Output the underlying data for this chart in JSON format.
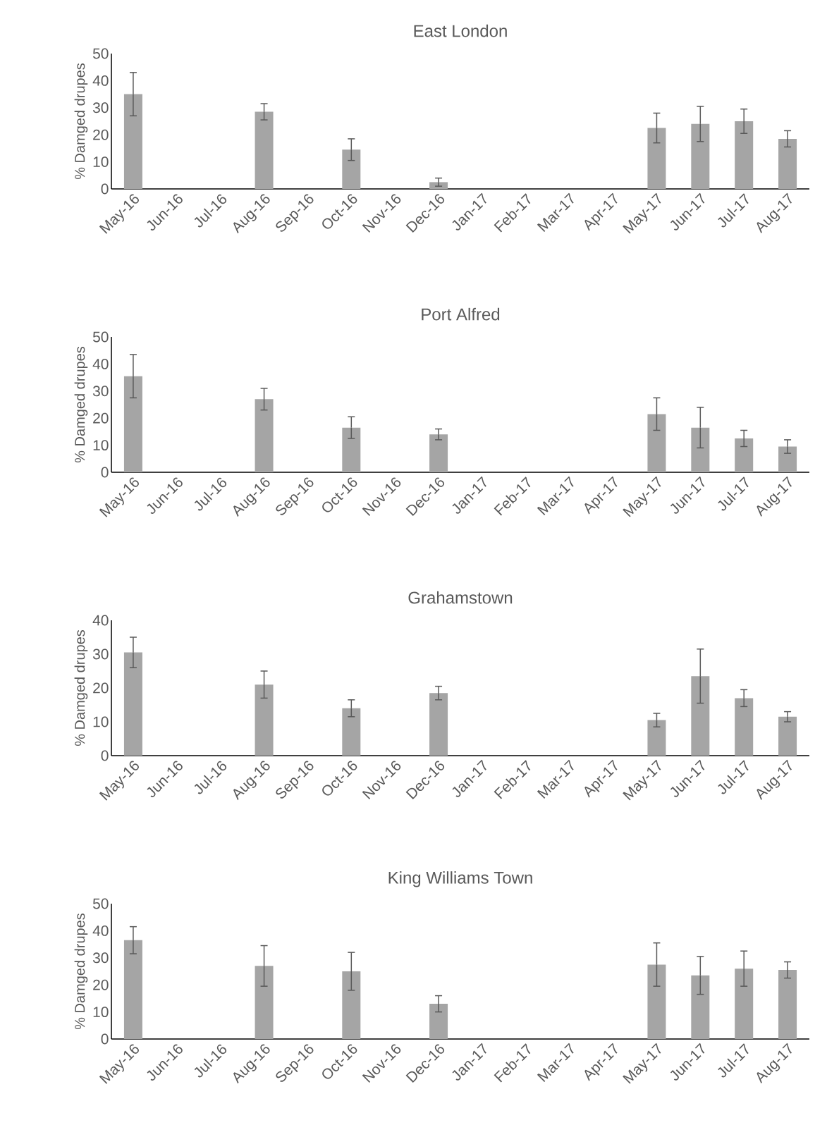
{
  "chart_data": [
    {
      "type": "bar",
      "title": "East London",
      "ylabel": "% Damged drupes",
      "color": "#a5a5a5",
      "grid": false,
      "categories": [
        "May-16",
        "Jun-16",
        "Jul-16",
        "Aug-16",
        "Sep-16",
        "Oct-16",
        "Nov-16",
        "Dec-16",
        "Jan-17",
        "Feb-17",
        "Mar-17",
        "Apr-17",
        "May-17",
        "Jun-17",
        "Jul-17",
        "Aug-17"
      ],
      "values": [
        35,
        null,
        null,
        28.5,
        null,
        14.5,
        null,
        2.5,
        null,
        null,
        null,
        null,
        22.5,
        24,
        25,
        18.5
      ],
      "errors": [
        8,
        null,
        null,
        3,
        null,
        4,
        null,
        1.5,
        null,
        null,
        null,
        null,
        5.5,
        6.5,
        4.5,
        3
      ],
      "ylim": [
        0,
        50
      ],
      "yticks": [
        0,
        10,
        20,
        30,
        40,
        50
      ]
    },
    {
      "type": "bar",
      "title": "Port Alfred",
      "ylabel": "% Damged drupes",
      "color": "#a5a5a5",
      "grid": false,
      "categories": [
        "May-16",
        "Jun-16",
        "Jul-16",
        "Aug-16",
        "Sep-16",
        "Oct-16",
        "Nov-16",
        "Dec-16",
        "Jan-17",
        "Feb-17",
        "Mar-17",
        "Apr-17",
        "May-17",
        "Jun-17",
        "Jul-17",
        "Aug-17"
      ],
      "values": [
        35.5,
        null,
        null,
        27,
        null,
        16.5,
        null,
        14,
        null,
        null,
        null,
        null,
        21.5,
        16.5,
        12.5,
        9.5
      ],
      "errors": [
        8,
        null,
        null,
        4,
        null,
        4,
        null,
        2,
        null,
        null,
        null,
        null,
        6,
        7.5,
        3,
        2.5
      ],
      "ylim": [
        0,
        50
      ],
      "yticks": [
        0,
        10,
        20,
        30,
        40,
        50
      ]
    },
    {
      "type": "bar",
      "title": "Grahamstown",
      "ylabel": "% Damged drupes",
      "color": "#a5a5a5",
      "grid": false,
      "categories": [
        "May-16",
        "Jun-16",
        "Jul-16",
        "Aug-16",
        "Sep-16",
        "Oct-16",
        "Nov-16",
        "Dec-16",
        "Jan-17",
        "Feb-17",
        "Mar-17",
        "Apr-17",
        "May-17",
        "Jun-17",
        "Jul-17",
        "Aug-17"
      ],
      "values": [
        30.5,
        null,
        null,
        21,
        null,
        14,
        null,
        18.5,
        null,
        null,
        null,
        null,
        10.5,
        23.5,
        17,
        11.5
      ],
      "errors": [
        4.5,
        null,
        null,
        4,
        null,
        2.5,
        null,
        2,
        null,
        null,
        null,
        null,
        2,
        8,
        2.5,
        1.5
      ],
      "ylim": [
        0,
        40
      ],
      "yticks": [
        0,
        10,
        20,
        30,
        40
      ]
    },
    {
      "type": "bar",
      "title": "King Williams Town",
      "ylabel": "% Damged drupes",
      "color": "#a5a5a5",
      "grid": false,
      "categories": [
        "May-16",
        "Jun-16",
        "Jul-16",
        "Aug-16",
        "Sep-16",
        "Oct-16",
        "Nov-16",
        "Dec-16",
        "Jan-17",
        "Feb-17",
        "Mar-17",
        "Apr-17",
        "May-17",
        "Jun-17",
        "Jul-17",
        "Aug-17"
      ],
      "values": [
        36.5,
        null,
        null,
        27,
        null,
        25,
        null,
        13,
        null,
        null,
        null,
        null,
        27.5,
        23.5,
        26,
        25.5
      ],
      "errors": [
        5,
        null,
        null,
        7.5,
        null,
        7,
        null,
        3,
        null,
        null,
        null,
        null,
        8,
        7,
        6.5,
        3
      ],
      "ylim": [
        0,
        50
      ],
      "yticks": [
        0,
        10,
        20,
        30,
        40,
        50
      ]
    }
  ]
}
